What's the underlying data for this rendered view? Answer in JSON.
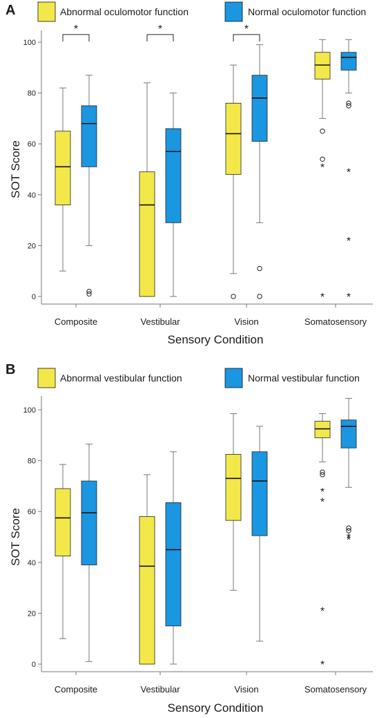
{
  "colors": {
    "abnormal": "#f3e84a",
    "normal": "#1b96e0",
    "axis": "#777777",
    "median": "#111111"
  },
  "chart_data": [
    {
      "type": "box",
      "panel_label": "A",
      "legend": [
        "Abnormal oculomotor function",
        "Normal oculomotor function"
      ],
      "xlabel": "Sensory Condition",
      "ylabel": "SOT Score",
      "ylim": [
        0,
        102
      ],
      "yticks": [
        0,
        20,
        40,
        60,
        80,
        100
      ],
      "categories": [
        "Composite",
        "Vestibular",
        "Vision",
        "Somatosensory"
      ],
      "series": [
        {
          "name": "Abnormal oculomotor function",
          "boxes": [
            {
              "min": 10,
              "q1": 36,
              "median": 51,
              "q3": 65,
              "max": 82,
              "outliers": [],
              "extremes": []
            },
            {
              "min": 0,
              "q1": 0,
              "median": 36,
              "q3": 49,
              "max": 84,
              "outliers": [],
              "extremes": []
            },
            {
              "min": 9,
              "q1": 48,
              "median": 64,
              "q3": 76,
              "max": 91,
              "outliers": [
                0
              ],
              "extremes": []
            },
            {
              "min": 70,
              "q1": 85.5,
              "median": 91,
              "q3": 96,
              "max": 101,
              "outliers": [
                65,
                54
              ],
              "extremes": [
                51,
                0
              ]
            }
          ]
        },
        {
          "name": "Normal oculomotor function",
          "boxes": [
            {
              "min": 20,
              "q1": 51,
              "median": 68,
              "q3": 75,
              "max": 87,
              "outliers": [
                2,
                1
              ],
              "extremes": []
            },
            {
              "min": 0,
              "q1": 29,
              "median": 57,
              "q3": 66,
              "max": 80,
              "outliers": [],
              "extremes": []
            },
            {
              "min": 29,
              "q1": 61,
              "median": 78,
              "q3": 87,
              "max": 99,
              "outliers": [
                11,
                0
              ],
              "extremes": []
            },
            {
              "min": 80,
              "q1": 89,
              "median": 94,
              "q3": 96,
              "max": 101,
              "outliers": [
                76,
                75
              ],
              "extremes": [
                49,
                22,
                0
              ]
            }
          ]
        }
      ],
      "significance": [
        {
          "category": "Composite",
          "label": "*"
        },
        {
          "category": "Vestibular",
          "label": "*"
        },
        {
          "category": "Vision",
          "label": "*"
        }
      ]
    },
    {
      "type": "box",
      "panel_label": "B",
      "legend": [
        "Abnormal vestibular function",
        "Normal vestibular function"
      ],
      "xlabel": "Sensory Condition",
      "ylabel": "SOT Score",
      "ylim": [
        0,
        105
      ],
      "yticks": [
        0,
        20,
        40,
        60,
        80,
        100
      ],
      "categories": [
        "Composite",
        "Vestibular",
        "Vision",
        "Somatosensory"
      ],
      "series": [
        {
          "name": "Abnormal vestibular function",
          "boxes": [
            {
              "min": 10,
              "q1": 42.5,
              "median": 57.5,
              "q3": 69,
              "max": 78.5,
              "outliers": [],
              "extremes": []
            },
            {
              "min": 0,
              "q1": 0,
              "median": 38.5,
              "q3": 58,
              "max": 74.5,
              "outliers": [],
              "extremes": []
            },
            {
              "min": 29,
              "q1": 56.5,
              "median": 73,
              "q3": 82.5,
              "max": 98.5,
              "outliers": [],
              "extremes": []
            },
            {
              "min": 79.5,
              "q1": 89,
              "median": 92.5,
              "q3": 95.5,
              "max": 98.5,
              "outliers": [
                75.5,
                74.5
              ],
              "extremes": [
                68,
                64,
                21,
                0
              ]
            }
          ]
        },
        {
          "name": "Normal vestibular function",
          "boxes": [
            {
              "min": 1,
              "q1": 39,
              "median": 59.5,
              "q3": 72,
              "max": 86.5,
              "outliers": [],
              "extremes": []
            },
            {
              "min": 0,
              "q1": 15,
              "median": 45,
              "q3": 63.5,
              "max": 83.5,
              "outliers": [],
              "extremes": []
            },
            {
              "min": 9,
              "q1": 50.5,
              "median": 72,
              "q3": 83.5,
              "max": 93.5,
              "outliers": [],
              "extremes": []
            },
            {
              "min": 69.5,
              "q1": 85,
              "median": 93.5,
              "q3": 96,
              "max": 104.5,
              "outliers": [
                53.5,
                52.5
              ],
              "extremes": [
                50,
                49
              ]
            }
          ]
        }
      ],
      "significance": []
    }
  ]
}
